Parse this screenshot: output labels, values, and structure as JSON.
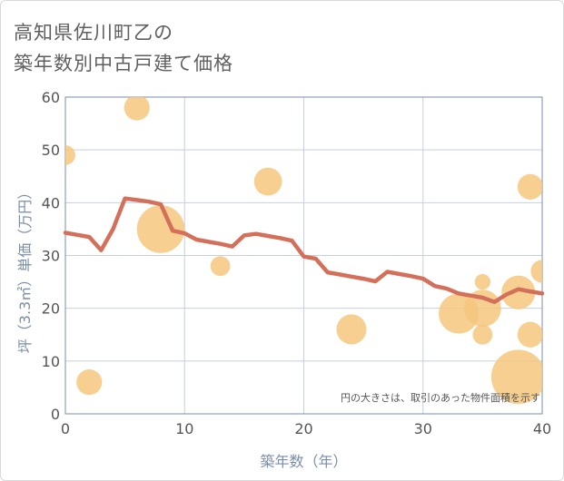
{
  "title_line1": "高知県佐川町乙の",
  "title_line2": "築年数別中古戸建て価格",
  "note": "円の大きさは、取引のあった物件面積を示す",
  "chart_data": {
    "type": "scatter+line",
    "xlabel": "築年数（年）",
    "ylabel": "坪（3.3㎡）単価（万円）",
    "xlim": [
      0,
      40
    ],
    "ylim": [
      0,
      60
    ],
    "xticks": [
      0,
      10,
      20,
      30,
      40
    ],
    "yticks": [
      0,
      10,
      20,
      30,
      40,
      50,
      60
    ],
    "grid": true,
    "colors": {
      "line": "#d4705a",
      "bubble": "#f5c77e",
      "grid": "#c5cfdd",
      "axis": "#7b8ea8",
      "tick_text": "#555555"
    },
    "line": {
      "x": [
        0,
        1,
        2,
        3,
        4,
        5,
        6,
        7,
        8,
        9,
        10,
        11,
        12,
        13,
        14,
        15,
        16,
        17,
        18,
        19,
        20,
        21,
        22,
        23,
        24,
        25,
        26,
        27,
        28,
        29,
        30,
        31,
        32,
        33,
        34,
        35,
        36,
        37,
        38,
        39,
        40
      ],
      "y": [
        34.3,
        33.9,
        33.5,
        31.0,
        35.0,
        40.8,
        40.5,
        40.2,
        39.7,
        34.7,
        34.2,
        33.0,
        32.6,
        32.2,
        31.7,
        33.8,
        34.1,
        33.7,
        33.3,
        32.8,
        29.8,
        29.4,
        26.8,
        26.4,
        26.0,
        25.6,
        25.1,
        26.9,
        26.5,
        26.1,
        25.6,
        24.2,
        23.7,
        22.8,
        22.4,
        22.0,
        21.2,
        22.6,
        23.6,
        23.2,
        22.8
      ]
    },
    "bubbles": [
      {
        "x": 0,
        "y": 49,
        "size": 1
      },
      {
        "x": 2,
        "y": 6,
        "size": 2
      },
      {
        "x": 6,
        "y": 58,
        "size": 2
      },
      {
        "x": 8,
        "y": 35,
        "size": 9
      },
      {
        "x": 13,
        "y": 28,
        "size": 1
      },
      {
        "x": 17,
        "y": 44,
        "size": 2.5
      },
      {
        "x": 24,
        "y": 16,
        "size": 3
      },
      {
        "x": 33,
        "y": 19,
        "size": 6
      },
      {
        "x": 35,
        "y": 20,
        "size": 5
      },
      {
        "x": 35,
        "y": 25,
        "size": 0.5
      },
      {
        "x": 35,
        "y": 15,
        "size": 1
      },
      {
        "x": 38,
        "y": 23,
        "size": 4
      },
      {
        "x": 38,
        "y": 7,
        "size": 12
      },
      {
        "x": 39,
        "y": 43,
        "size": 2
      },
      {
        "x": 39,
        "y": 15,
        "size": 2
      },
      {
        "x": 40,
        "y": 27,
        "size": 1.5
      }
    ]
  }
}
